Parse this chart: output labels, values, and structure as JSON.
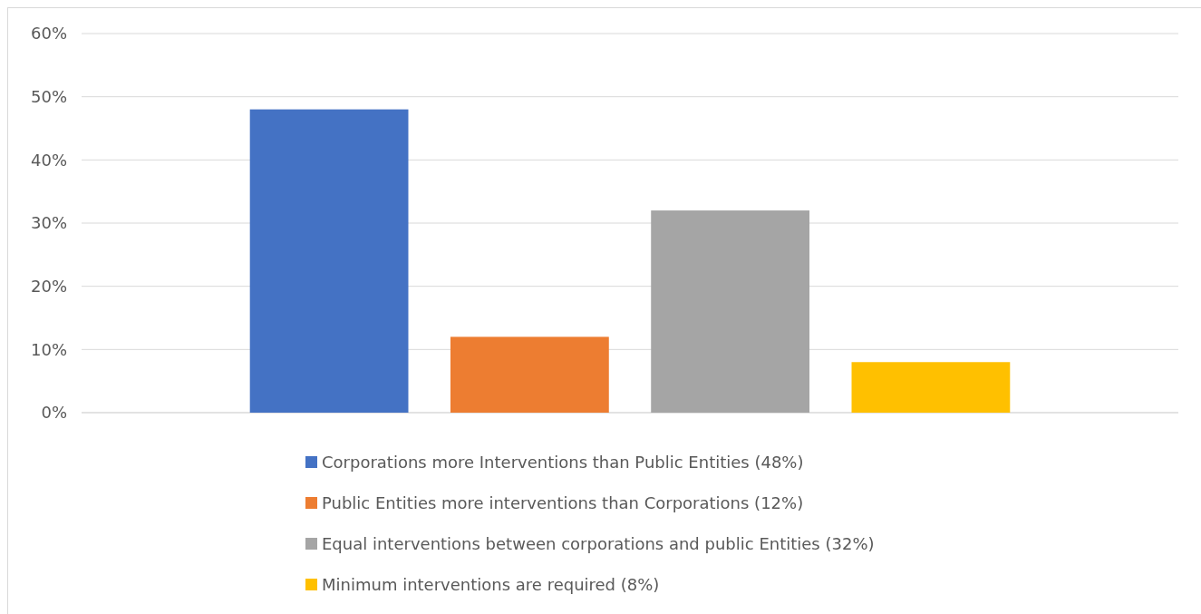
{
  "chart_data": {
    "type": "bar",
    "categories": [
      null
    ],
    "series": [
      {
        "name": "Corporations more Interventions than Public Entities (48%)",
        "color": "#4472c4",
        "values": [
          48
        ]
      },
      {
        "name": "Public Entities more interventions than Corporations (12%)",
        "color": "#ed7d31",
        "values": [
          12
        ]
      },
      {
        "name": "Equal interventions between corporations and public Entities (32%)",
        "color": "#a5a5a5",
        "values": [
          32
        ]
      },
      {
        "name": "Minimum interventions are required (8%)",
        "color": "#ffc000",
        "values": [
          8
        ]
      }
    ],
    "ylim": [
      0,
      60
    ],
    "yticks": [
      {
        "value": 0,
        "label": "0%"
      },
      {
        "value": 10,
        "label": "10%"
      },
      {
        "value": 20,
        "label": "20%"
      },
      {
        "value": 30,
        "label": "30%"
      },
      {
        "value": 40,
        "label": "40%"
      },
      {
        "value": 50,
        "label": "50%"
      },
      {
        "value": 60,
        "label": "60%"
      }
    ],
    "grid": "y",
    "legend": "bottom"
  }
}
